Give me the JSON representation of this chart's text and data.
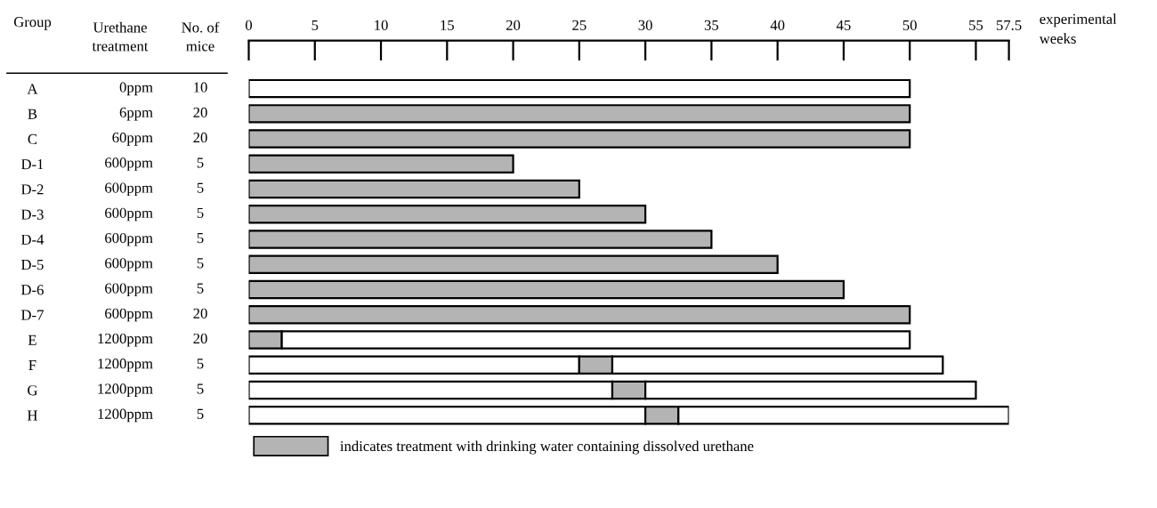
{
  "chart_data": {
    "type": "bar",
    "orientation": "horizontal",
    "stacked": true,
    "ylabel": "Group",
    "xlabel": "experimental weeks",
    "categories": [
      "A",
      "B",
      "C",
      "D-1",
      "D-2",
      "D-3",
      "D-4",
      "D-5",
      "D-6",
      "D-7",
      "E",
      "F",
      "G",
      "H"
    ],
    "series": [
      {
        "axis": "x2",
        "color": "#ffffff",
        "values": [
          50,
          0,
          0,
          0,
          0,
          0,
          0,
          0,
          0,
          0,
          0,
          25,
          27.5,
          30
        ]
      },
      {
        "axis": "x2",
        "name": "indicates treatment with drinking water containing dissolved urethane",
        "color": "#b4b4b4",
        "values": [
          0,
          50,
          50,
          20,
          25,
          30,
          35,
          40,
          45,
          50,
          2.5,
          2.5,
          2.5,
          2.5
        ]
      },
      {
        "axis": "x2",
        "color": "#ffffff",
        "values": [
          0,
          0,
          0,
          0,
          0,
          0,
          0,
          0,
          0,
          0,
          47.5,
          25,
          25,
          25
        ]
      }
    ],
    "x2lim": [
      0,
      57.5
    ],
    "x2ticks": [
      0,
      5,
      10,
      15,
      20,
      25,
      30,
      35,
      40,
      45,
      50,
      55,
      57.5
    ],
    "legend": "bottom left",
    "grid": false,
    "annotations": [
      "Urethane\ntreatment",
      "No. of\nmice",
      "0ppm",
      "6ppm",
      "60ppm",
      "600ppm",
      "600ppm",
      "600ppm",
      "600ppm",
      "600ppm",
      "600ppm",
      "600ppm",
      "1200ppm",
      "1200ppm",
      "1200ppm",
      "1200ppm",
      "10",
      "20",
      "20",
      "5",
      "5",
      "5",
      "5",
      "5",
      "5",
      "20",
      "20",
      "5",
      "5",
      "5"
    ]
  }
}
